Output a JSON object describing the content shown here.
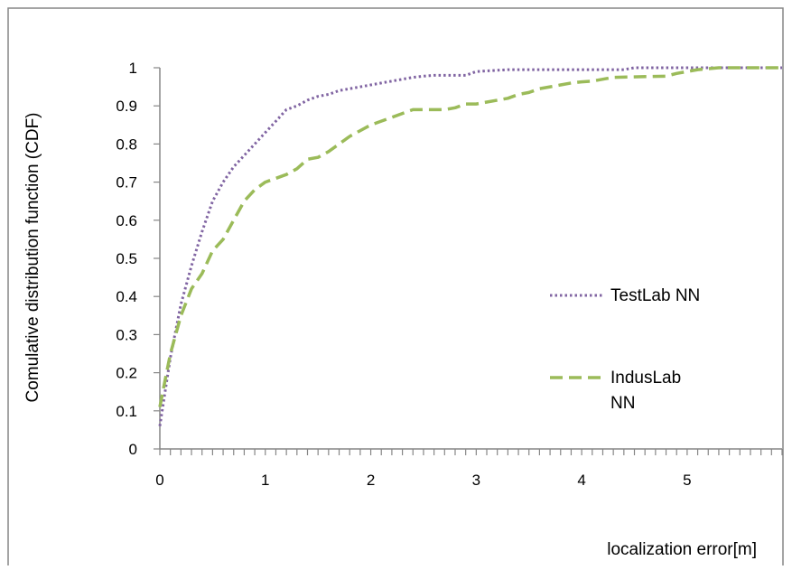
{
  "chart_data": {
    "type": "line",
    "title": "",
    "xlabel": "localization error[m]",
    "ylabel": "Comulative distribution function (CDF)",
    "xlim": [
      0,
      5.9
    ],
    "ylim": [
      0,
      1
    ],
    "x_ticks": [
      "0",
      "1",
      "2",
      "3",
      "4",
      "5"
    ],
    "y_ticks": [
      "0",
      "0.1",
      "0.2",
      "0.3",
      "0.4",
      "0.5",
      "0.6",
      "0.7",
      "0.8",
      "0.9",
      "1"
    ],
    "grid": false,
    "legend_position": "right",
    "series": [
      {
        "name": "TestLab NN",
        "color": "#8064a2",
        "dash": "dotted",
        "points": [
          [
            0,
            0.06
          ],
          [
            0.05,
            0.15
          ],
          [
            0.1,
            0.24
          ],
          [
            0.15,
            0.31
          ],
          [
            0.2,
            0.38
          ],
          [
            0.3,
            0.48
          ],
          [
            0.4,
            0.57
          ],
          [
            0.5,
            0.65
          ],
          [
            0.6,
            0.7
          ],
          [
            0.7,
            0.74
          ],
          [
            0.8,
            0.77
          ],
          [
            0.9,
            0.8
          ],
          [
            1.0,
            0.83
          ],
          [
            1.1,
            0.86
          ],
          [
            1.2,
            0.89
          ],
          [
            1.3,
            0.9
          ],
          [
            1.4,
            0.915
          ],
          [
            1.5,
            0.925
          ],
          [
            1.6,
            0.93
          ],
          [
            1.7,
            0.94
          ],
          [
            1.8,
            0.945
          ],
          [
            1.9,
            0.95
          ],
          [
            2.0,
            0.955
          ],
          [
            2.1,
            0.96
          ],
          [
            2.2,
            0.965
          ],
          [
            2.3,
            0.97
          ],
          [
            2.4,
            0.975
          ],
          [
            2.5,
            0.978
          ],
          [
            2.6,
            0.98
          ],
          [
            2.7,
            0.98
          ],
          [
            2.9,
            0.98
          ],
          [
            3.0,
            0.99
          ],
          [
            3.3,
            0.995
          ],
          [
            4.0,
            0.995
          ],
          [
            4.4,
            0.995
          ],
          [
            4.5,
            1.0
          ],
          [
            5.9,
            1.0
          ]
        ]
      },
      {
        "name": "IndusLab NN",
        "color": "#9bbb59",
        "dash": "dashed",
        "points": [
          [
            0,
            0.11
          ],
          [
            0.05,
            0.18
          ],
          [
            0.1,
            0.25
          ],
          [
            0.2,
            0.35
          ],
          [
            0.3,
            0.42
          ],
          [
            0.4,
            0.46
          ],
          [
            0.5,
            0.52
          ],
          [
            0.6,
            0.55
          ],
          [
            0.7,
            0.6
          ],
          [
            0.8,
            0.65
          ],
          [
            0.9,
            0.68
          ],
          [
            1.0,
            0.7
          ],
          [
            1.1,
            0.71
          ],
          [
            1.2,
            0.72
          ],
          [
            1.3,
            0.735
          ],
          [
            1.4,
            0.76
          ],
          [
            1.5,
            0.765
          ],
          [
            1.6,
            0.78
          ],
          [
            1.7,
            0.8
          ],
          [
            1.8,
            0.82
          ],
          [
            1.9,
            0.835
          ],
          [
            2.0,
            0.85
          ],
          [
            2.1,
            0.86
          ],
          [
            2.2,
            0.87
          ],
          [
            2.3,
            0.88
          ],
          [
            2.4,
            0.89
          ],
          [
            2.7,
            0.89
          ],
          [
            2.8,
            0.895
          ],
          [
            2.9,
            0.905
          ],
          [
            3.0,
            0.905
          ],
          [
            3.1,
            0.91
          ],
          [
            3.2,
            0.915
          ],
          [
            3.3,
            0.92
          ],
          [
            3.4,
            0.93
          ],
          [
            3.5,
            0.935
          ],
          [
            3.6,
            0.945
          ],
          [
            3.7,
            0.95
          ],
          [
            3.8,
            0.955
          ],
          [
            3.9,
            0.96
          ],
          [
            4.0,
            0.963
          ],
          [
            4.1,
            0.965
          ],
          [
            4.2,
            0.97
          ],
          [
            4.3,
            0.975
          ],
          [
            4.8,
            0.978
          ],
          [
            4.9,
            0.985
          ],
          [
            5.0,
            0.99
          ],
          [
            5.1,
            0.995
          ],
          [
            5.3,
            1.0
          ],
          [
            5.9,
            1.0
          ]
        ]
      }
    ],
    "legend": [
      {
        "lines": [
          "TestLab NN"
        ]
      },
      {
        "lines": [
          "IndusLab",
          "NN"
        ]
      }
    ]
  }
}
